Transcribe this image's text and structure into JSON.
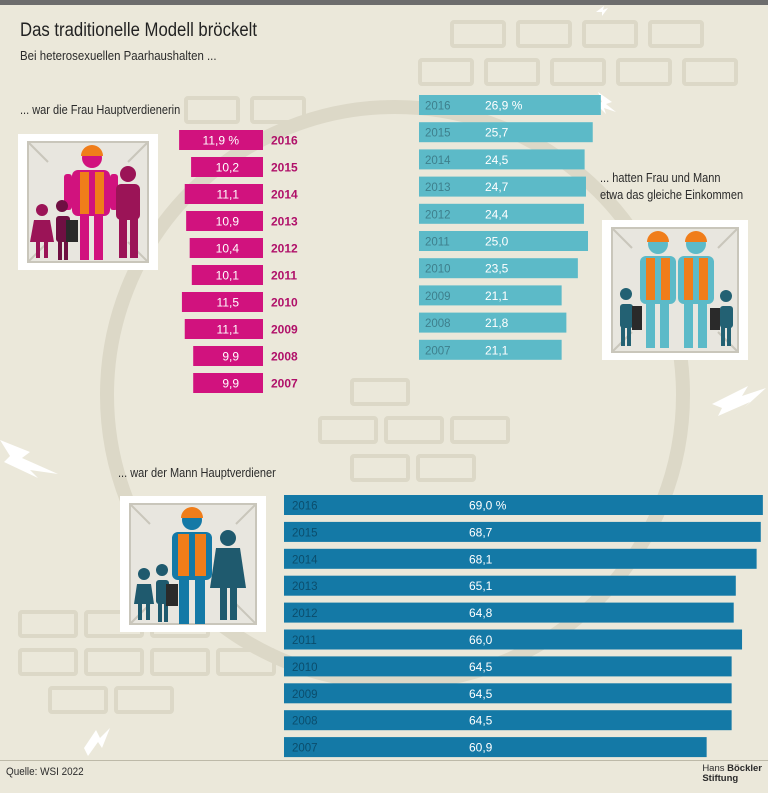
{
  "title": "Das traditionelle Modell bröckelt",
  "subtitle": "Bei heterosexuellen Paarhaushalten ...",
  "source": "Quelle: WSI 2022",
  "logo": {
    "line1_a": "Hans ",
    "line1_b": "Böckler",
    "line2": "Stiftung"
  },
  "icons": [
    "woman-breadwinner-family-icon",
    "equal-income-family-icon",
    "man-breadwinner-family-icon"
  ],
  "colors": {
    "woman": "#d1127e",
    "equal": "#5cbac8",
    "man": "#1479a6",
    "background": "#ebe8da"
  },
  "chart_data": [
    {
      "type": "bar",
      "title": "... war die Frau Hauptverdienerin",
      "categories": [
        "2016",
        "2015",
        "2014",
        "2013",
        "2012",
        "2011",
        "2010",
        "2009",
        "2008",
        "2007"
      ],
      "values": [
        11.9,
        10.2,
        11.1,
        10.9,
        10.4,
        10.1,
        11.5,
        11.1,
        9.9,
        9.9
      ],
      "labels": [
        "11,9 %",
        "10,2",
        "11,1",
        "10,9",
        "10,4",
        "10,1",
        "11,5",
        "11,1",
        "9,9",
        "9,9"
      ],
      "unit": "%"
    },
    {
      "type": "bar",
      "title": "... hatten Frau und Mann etwa das gleiche Einkommen",
      "title_line1": "... hatten Frau und Mann",
      "title_line2": "etwa das gleiche Einkommen",
      "categories": [
        "2016",
        "2015",
        "2014",
        "2013",
        "2012",
        "2011",
        "2010",
        "2009",
        "2008",
        "2007"
      ],
      "values": [
        26.9,
        25.7,
        24.5,
        24.7,
        24.4,
        25.0,
        23.5,
        21.1,
        21.8,
        21.1
      ],
      "labels": [
        "26,9 %",
        "25,7",
        "24,5",
        "24,7",
        "24,4",
        "25,0",
        "23,5",
        "21,1",
        "21,8",
        "21,1"
      ],
      "unit": "%"
    },
    {
      "type": "bar",
      "title": "... war der Mann Hauptverdiener",
      "categories": [
        "2016",
        "2015",
        "2014",
        "2013",
        "2012",
        "2011",
        "2010",
        "2009",
        "2008",
        "2007"
      ],
      "values": [
        69.0,
        68.7,
        68.1,
        65.1,
        64.8,
        66.0,
        64.5,
        64.5,
        64.5,
        60.9
      ],
      "labels": [
        "69,0 %",
        "68,7",
        "68,1",
        "65,1",
        "64,8",
        "66,0",
        "64,5",
        "64,5",
        "64,5",
        "60,9"
      ],
      "unit": "%"
    }
  ]
}
